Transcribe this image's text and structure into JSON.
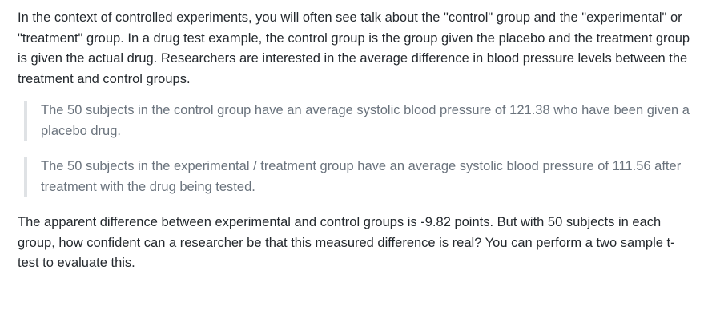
{
  "intro": "In the context of controlled experiments, you will often see talk about the \"control\" group and the \"experimental\" or \"treatment\" group. In a drug test example, the control group is the group given the placebo and the treatment group is given the actual drug. Researchers are interested in the average difference in blood pressure levels between the treatment and control groups.",
  "quotes": [
    "The 50 subjects in the control group have an average systolic blood pressure of 121.38 who have been given a placebo drug.",
    "The 50 subjects in the experimental / treatment group have an average systolic blood pressure of 111.56 after treatment with the drug being tested."
  ],
  "conclusion": "The apparent difference between experimental and control groups is -9.82 points. But with 50 subjects in each group, how confident can a researcher be that this measured difference is real? You can perform a two sample t-test to evaluate this."
}
